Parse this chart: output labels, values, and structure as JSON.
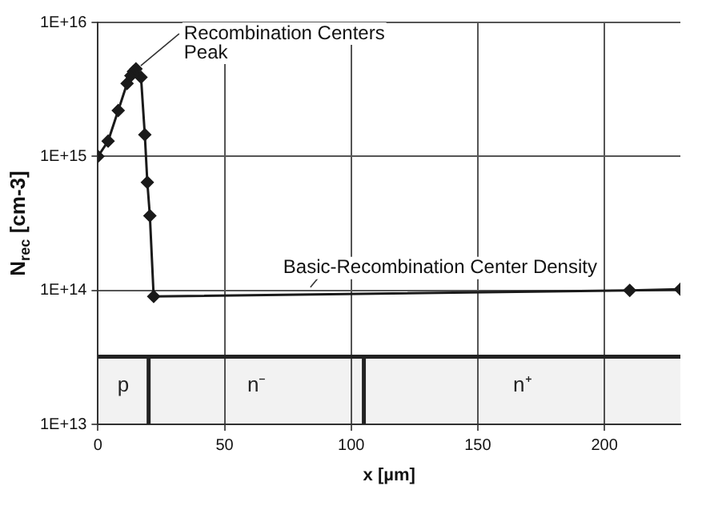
{
  "chart_data": {
    "type": "line",
    "xlabel": "x [µm]",
    "ylabel": "N$_{rec}$ [cm-3]",
    "x": [
      0,
      4,
      8,
      11.5,
      13,
      14,
      15,
      17,
      18.5,
      19.5,
      20.5,
      22,
      210,
      230
    ],
    "series": [
      {
        "color": "#1a1a1a",
        "values": [
          1000000000000000.0,
          1300000000000000.0,
          2200000000000000.0,
          3500000000000000.0,
          4000000000000000.0,
          4300000000000000.0,
          4500000000000000.0,
          3900000000000000.0,
          1450000000000000.0,
          640000000000000.0,
          360000000000000.0,
          90000000000000.0,
          100000000000000.0,
          102000000000000.0
        ]
      }
    ],
    "xlim": [
      0,
      230
    ],
    "xticks": [
      0,
      50,
      100,
      150,
      200
    ],
    "ylim": [
      10000000000000.0,
      1e+16
    ],
    "yticks": [
      {
        "value": 10000000000000.0,
        "label": "1E+13"
      },
      {
        "value": 100000000000000.0,
        "label": "1E+14"
      },
      {
        "value": 1000000000000000.0,
        "label": "1E+15"
      },
      {
        "value": 1e+16,
        "label": "1E+16"
      }
    ],
    "log": "y",
    "grid": true,
    "legend": false,
    "marker": "diamond",
    "line_style": "solid",
    "annotations": [
      {
        "text": "Recombination Centers\nPeak",
        "x": 15,
        "y": 4500000000000000.0
      },
      {
        "text": "Basic-Recombination Center Density",
        "x": 82,
        "y": 100000000000000.0
      }
    ],
    "ref_lines": [
      {
        "axis": "y",
        "value": 32000000000000.0,
        "color": "#222222"
      },
      {
        "axis": "x",
        "value": 20,
        "color": "#222222"
      },
      {
        "axis": "x",
        "value": 105,
        "color": "#222222"
      }
    ],
    "bands": [
      {
        "axis": "x",
        "from": 0,
        "to": 20,
        "label": "p"
      },
      {
        "axis": "x",
        "from": 20,
        "to": 105,
        "label": "n⁻"
      },
      {
        "axis": "x",
        "from": 105,
        "to": 230,
        "label": "n⁺"
      }
    ]
  }
}
